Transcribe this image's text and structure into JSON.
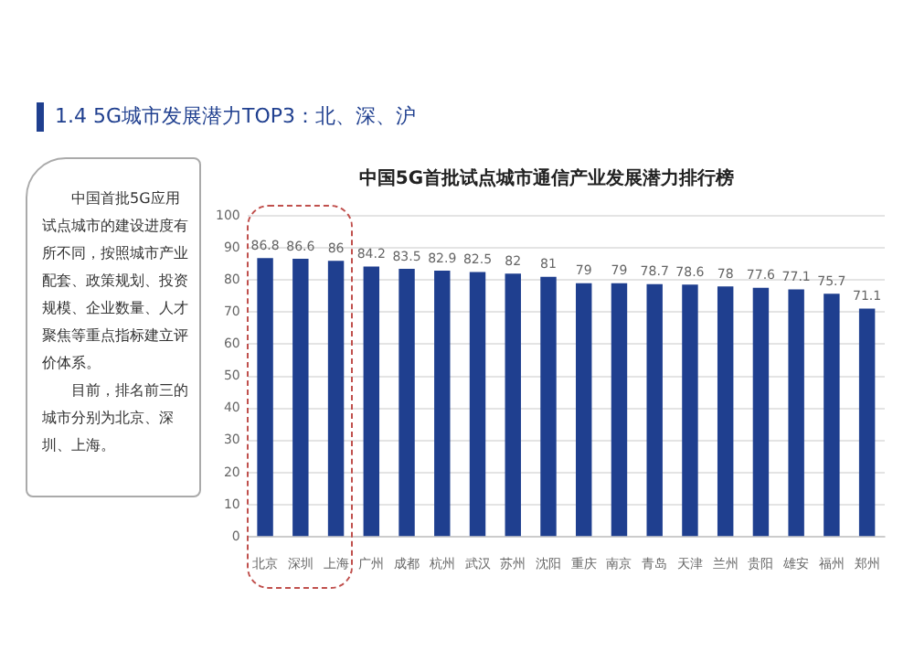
{
  "chart_data": {
    "type": "bar",
    "title": "1.4 5G城市发展潜力TOP3：北、深、沪",
    "subtitle": "中国5G首批试点城市通信产业发展潜力排行榜",
    "categories": [
      "北京",
      "深圳",
      "上海",
      "广州",
      "成都",
      "杭州",
      "武汉",
      "苏州",
      "沈阳",
      "重庆",
      "南京",
      "青岛",
      "天津",
      "兰州",
      "贵阳",
      "雄安",
      "福州",
      "郑州"
    ],
    "values": [
      86.8,
      86.6,
      86,
      84.2,
      83.5,
      82.9,
      82.5,
      82,
      81,
      79,
      79,
      78.7,
      78.6,
      78,
      77.6,
      77.1,
      75.7,
      71.1
    ],
    "color": "#1f3f8f",
    "ylim": [
      0,
      100
    ],
    "yticks": [
      0,
      10,
      20,
      30,
      40,
      50,
      60,
      70,
      80,
      90,
      100
    ],
    "grid": "y",
    "data_labels": true,
    "legend": false,
    "annotations": [
      "中国首批5G应用试点城市的建设进度有所不同，按照城市产业配套、政策规划、投资规模、企业数量、人才聚焦等重点指标建立评价体系。",
      "目前，排名前三的城市分别为北京、深圳、上海。"
    ]
  }
}
